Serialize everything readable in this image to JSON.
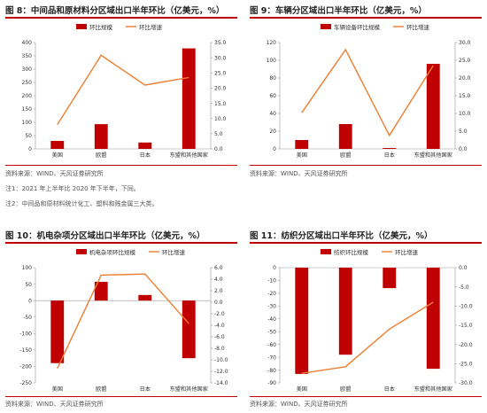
{
  "colors": {
    "bar": "#c00000",
    "line": "#ed7d31",
    "rule": "#c00000",
    "axis": "#999999",
    "text": "#333333"
  },
  "charts": [
    {
      "title": "图 8：中间品和原材料分区域出口半年环比（亿美元，%）",
      "source": "资料来源：WIND、天风证券研究所",
      "notes": [
        "注1：2021 年上半年比 2020 年下半年，下同。",
        "注2：中间品和原材料统计化工、塑料和贱金属三大类。"
      ]
    },
    {
      "title": "图 9：车辆分区域出口半年环比（亿美元，%）",
      "source": "资料来源：WIND、天风证券研究所",
      "notes": []
    },
    {
      "title": "图 10：机电杂项分区域出口半年环比（亿美元，%）",
      "source": "资料来源：WIND、天风证券研究所",
      "notes": []
    },
    {
      "title": "图 11：纺织分区域出口半年环比（亿美元，%）",
      "source": "资料来源：WIND、天风证券研究所",
      "notes": []
    }
  ],
  "chart_data": [
    {
      "type": "bar",
      "categories": [
        "美国",
        "欧盟",
        "日本",
        "东盟和其他国家"
      ],
      "series": [
        {
          "name": "环比规模",
          "kind": "bar",
          "axis": "left",
          "values": [
            30,
            93,
            24,
            378
          ]
        },
        {
          "name": "环比增速",
          "kind": "line",
          "axis": "right",
          "values": [
            8.0,
            30.8,
            21.0,
            23.5
          ]
        }
      ],
      "ylim": [
        0,
        400
      ],
      "yticks": [
        "0",
        "50",
        "100",
        "150",
        "200",
        "250",
        "300",
        "350",
        "400"
      ],
      "y2lim": [
        0,
        35
      ],
      "y2ticks": [
        "0.0",
        "5.0",
        "10.0",
        "15.0",
        "20.0",
        "25.0",
        "30.0",
        "35.0"
      ],
      "legend": "top-center"
    },
    {
      "type": "bar",
      "categories": [
        "美国",
        "欧盟",
        "日本",
        "东盟和其他国家"
      ],
      "series": [
        {
          "name": "车辆设备环比规模",
          "kind": "bar",
          "axis": "left",
          "values": [
            10,
            28,
            1,
            96
          ]
        },
        {
          "name": "环比增速",
          "kind": "line",
          "axis": "right",
          "values": [
            10.2,
            28.0,
            3.8,
            23.5
          ]
        }
      ],
      "ylim": [
        0,
        120
      ],
      "yticks": [
        "0",
        "20",
        "40",
        "60",
        "80",
        "100",
        "120"
      ],
      "y2lim": [
        0,
        30
      ],
      "y2ticks": [
        "0.0",
        "5.0",
        "10.0",
        "15.0",
        "20.0",
        "25.0",
        "30.0"
      ],
      "legend": "top-center"
    },
    {
      "type": "bar",
      "categories": [
        "美国",
        "欧盟",
        "日本",
        "东盟和其他国家"
      ],
      "series": [
        {
          "name": "机电杂项环比规模",
          "kind": "bar",
          "axis": "left",
          "values": [
            -190,
            57,
            17,
            -175
          ]
        },
        {
          "name": "环比增速",
          "kind": "line",
          "axis": "right",
          "values": [
            -11.5,
            4.7,
            4.9,
            -3.7
          ]
        }
      ],
      "ylim": [
        -250,
        100
      ],
      "yticks": [
        "-250",
        "-200",
        "-150",
        "-100",
        "-50",
        "0",
        "50",
        "100"
      ],
      "y2lim": [
        -14,
        6
      ],
      "y2ticks": [
        "-14.0",
        "-12.0",
        "-10.0",
        "-8.0",
        "-6.0",
        "-4.0",
        "-2.0",
        "0.0",
        "2.0",
        "4.0",
        "6.0"
      ],
      "legend": "top-center"
    },
    {
      "type": "bar",
      "categories": [
        "美国",
        "欧盟",
        "日本",
        "东盟和其他国家"
      ],
      "series": [
        {
          "name": "纺织环比规模",
          "kind": "bar",
          "axis": "left",
          "values": [
            -83,
            -68,
            -16,
            -79
          ]
        },
        {
          "name": "环比增速",
          "kind": "line",
          "axis": "right",
          "values": [
            -27.5,
            -25.8,
            -16.0,
            -9.0
          ]
        }
      ],
      "ylim": [
        -90,
        0
      ],
      "yticks": [
        "-90",
        "-80",
        "-70",
        "-60",
        "-50",
        "-40",
        "-30",
        "-20",
        "-10",
        "0"
      ],
      "y2lim": [
        -30,
        0
      ],
      "y2ticks": [
        "-30.0",
        "-25.0",
        "-20.0",
        "-15.0",
        "-10.0",
        "-5.0",
        "0.0"
      ],
      "legend": "top-center"
    }
  ]
}
